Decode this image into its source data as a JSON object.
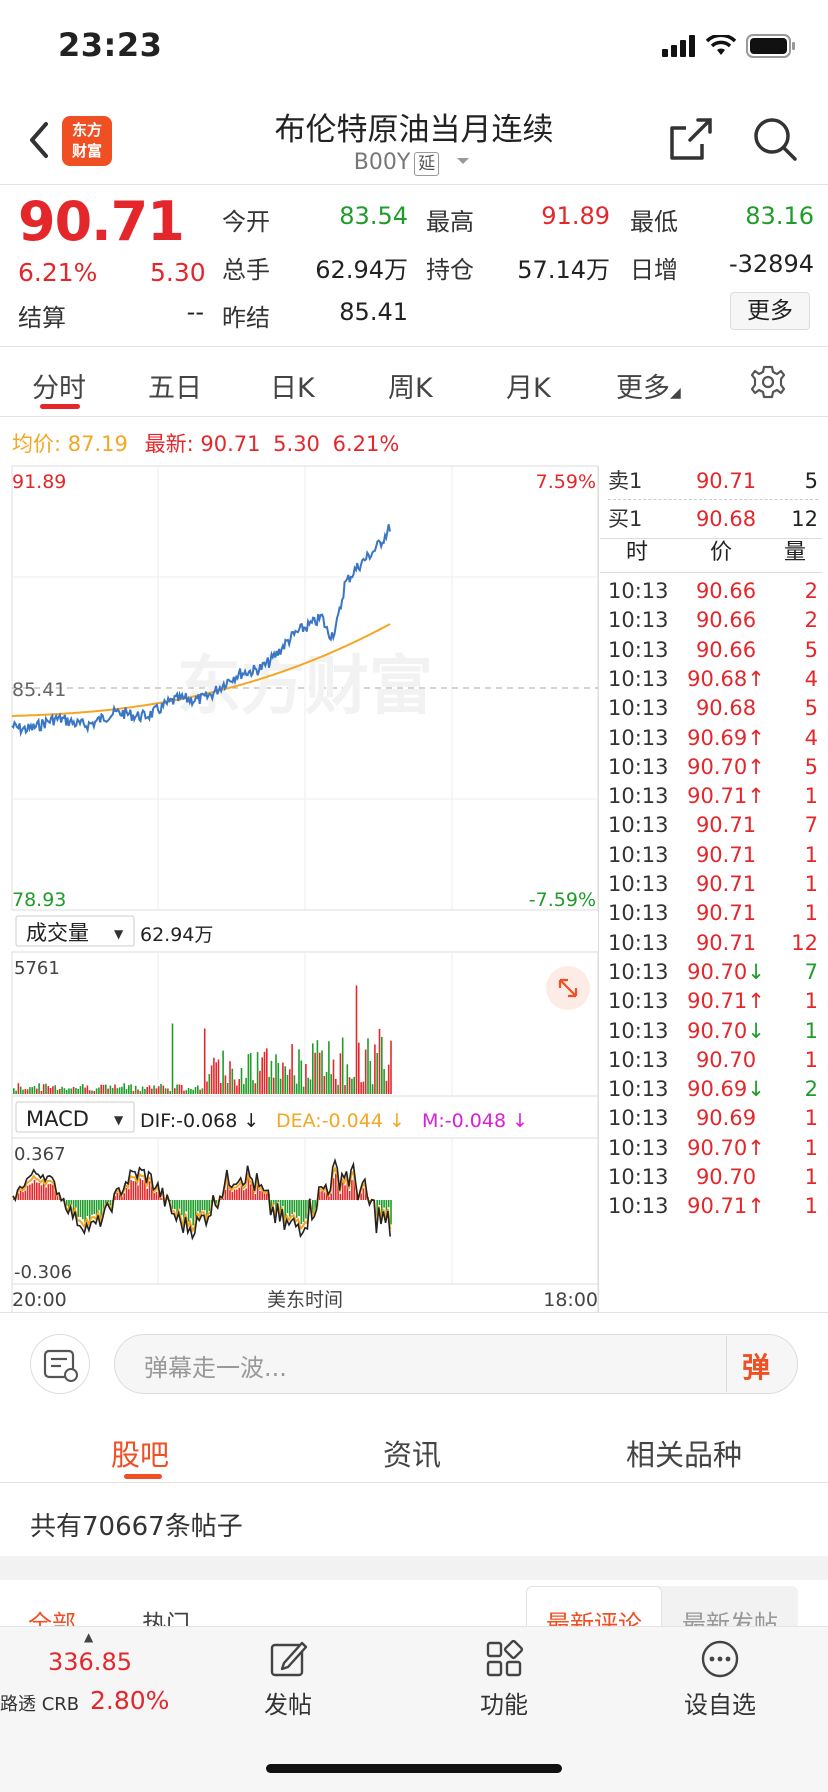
{
  "status": {
    "time": "23:23"
  },
  "header": {
    "logo_line1": "东方",
    "logo_line2": "财富",
    "title": "布伦特原油当月连续",
    "code": "B00Y",
    "delay_tag": "延"
  },
  "quote": {
    "price": "90.71",
    "change_pct": "6.21%",
    "change": "5.30",
    "settle_label": "结算",
    "settle_value": "--",
    "items": [
      {
        "label": "今开",
        "value": "83.54"
      },
      {
        "label": "最高",
        "value": "91.89"
      },
      {
        "label": "最低",
        "value": "83.16"
      },
      {
        "label": "总手",
        "value": "62.94万"
      },
      {
        "label": "持仓",
        "value": "57.14万"
      },
      {
        "label": "日增",
        "value": "-32894"
      },
      {
        "label": "昨结",
        "value": "85.41"
      }
    ],
    "more_label": "更多"
  },
  "period_tabs": [
    "分时",
    "五日",
    "日K",
    "周K",
    "月K",
    "更多"
  ],
  "avg_row": {
    "avg_label": "均价:",
    "avg_value": "87.19",
    "latest_label": "最新:",
    "latest_value": "90.71",
    "latest_change": "5.30",
    "latest_pct": "6.21%"
  },
  "chart": {
    "high": "91.89",
    "low": "78.93",
    "prev": "85.41",
    "pct_up": "7.59%",
    "pct_down": "-7.59%",
    "volume_label": "成交量",
    "volume_value": "62.94万",
    "volume_max": "5761",
    "macd_label": "MACD",
    "dif": "DIF:-0.068 ↓",
    "dea": "DEA:-0.044 ↓",
    "m": "M:-0.048 ↓",
    "macd_max": "0.367",
    "macd_min": "-0.306",
    "time_start": "20:00",
    "time_mid": "美东时间",
    "time_end": "18:00",
    "watermark": "东方财富"
  },
  "order_book": {
    "sell1": {
      "label": "卖1",
      "price": "90.71",
      "vol": "5"
    },
    "buy1": {
      "label": "买1",
      "price": "90.68",
      "vol": "12"
    },
    "headers": [
      "时",
      "价",
      "量"
    ],
    "trades": [
      {
        "t": "10:13",
        "p": "90.66",
        "v": "2"
      },
      {
        "t": "10:13",
        "p": "90.66",
        "v": "2"
      },
      {
        "t": "10:13",
        "p": "90.66",
        "v": "5"
      },
      {
        "t": "10:13",
        "p": "90.68↑",
        "v": "4"
      },
      {
        "t": "10:13",
        "p": "90.68",
        "v": "5"
      },
      {
        "t": "10:13",
        "p": "90.69↑",
        "v": "4"
      },
      {
        "t": "10:13",
        "p": "90.70↑",
        "v": "5"
      },
      {
        "t": "10:13",
        "p": "90.71↑",
        "v": "1"
      },
      {
        "t": "10:13",
        "p": "90.71",
        "v": "7"
      },
      {
        "t": "10:13",
        "p": "90.71",
        "v": "1"
      },
      {
        "t": "10:13",
        "p": "90.71",
        "v": "1"
      },
      {
        "t": "10:13",
        "p": "90.71",
        "v": "1"
      },
      {
        "t": "10:13",
        "p": "90.71",
        "v": "12"
      },
      {
        "t": "10:13",
        "p": "90.70↓",
        "v": "7"
      },
      {
        "t": "10:13",
        "p": "90.71↑",
        "v": "1"
      },
      {
        "t": "10:13",
        "p": "90.70↓",
        "v": "1"
      },
      {
        "t": "10:13",
        "p": "90.70",
        "v": "1"
      },
      {
        "t": "10:13",
        "p": "90.69↓",
        "v": "2"
      },
      {
        "t": "10:13",
        "p": "90.69",
        "v": "1"
      },
      {
        "t": "10:13",
        "p": "90.70↑",
        "v": "1"
      },
      {
        "t": "10:13",
        "p": "90.70",
        "v": "1"
      },
      {
        "t": "10:13",
        "p": "90.71↑",
        "v": "1"
      }
    ]
  },
  "danmu": {
    "placeholder": "弹幕走一波...",
    "button": "弹"
  },
  "bottom_tabs": [
    "股吧",
    "资讯",
    "相关品种"
  ],
  "posts_count": "共有70667条帖子",
  "sub_tabs": [
    "全部",
    "热门"
  ],
  "sort_tabs": [
    "最新评论",
    "最新发帖"
  ],
  "nav": {
    "crb_value": "336.85",
    "crb_name": "路透 CRB",
    "crb_pct": "2.80%",
    "post": "发帖",
    "function": "功能",
    "watchlist": "设自选"
  },
  "colors": {
    "up": "#e4272b",
    "down": "#1f9c2a",
    "avg": "#f5a623",
    "price_line": "#3a76c4",
    "brand": "#f04e23"
  }
}
